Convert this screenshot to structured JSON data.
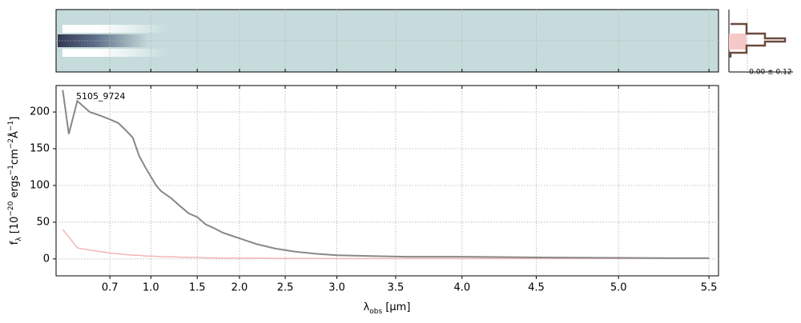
{
  "chart_data": {
    "type": "line",
    "annotation": "5105_9724",
    "profile_label": "-0.00 ± 0.12",
    "xlabel": [
      {
        "text": "λ"
      },
      {
        "text": "obs",
        "shift": "sub"
      },
      {
        "text": " [μm]"
      }
    ],
    "ylabel": [
      {
        "text": "f"
      },
      {
        "text": "λ",
        "shift": "sub"
      },
      {
        "text": " [10"
      },
      {
        "text": "−20",
        "shift": "super"
      },
      {
        "text": " ergs"
      },
      {
        "text": "−1",
        "shift": "super"
      },
      {
        "text": "cm"
      },
      {
        "text": "−2",
        "shift": "super"
      },
      {
        "text": "Å"
      },
      {
        "text": "−1",
        "shift": "super"
      },
      {
        "text": "]"
      }
    ],
    "x": [
      0.5,
      0.52,
      0.55,
      0.6,
      0.65,
      0.7,
      0.75,
      0.8,
      0.85,
      0.9,
      0.95,
      1.0,
      1.05,
      1.1,
      1.2,
      1.3,
      1.4,
      1.5,
      1.6,
      1.7,
      1.8,
      1.9,
      2.0,
      2.1,
      2.2,
      2.4,
      2.6,
      2.8,
      3.0,
      3.3,
      3.6,
      4.0,
      4.5,
      5.0,
      5.3,
      5.5
    ],
    "series": [
      {
        "color": "#888888",
        "values": [
          230,
          170,
          215,
          200,
          195,
          190,
          185,
          175,
          165,
          140,
          125,
          112,
          100,
          92,
          83,
          72,
          62,
          57,
          47,
          42,
          36,
          32,
          28,
          24,
          20,
          14,
          10,
          7,
          5,
          4,
          3,
          3,
          2,
          1.5,
          1,
          1
        ]
      },
      {
        "color": "#f4b6b6",
        "values": [
          40,
          30,
          15,
          12,
          10,
          8,
          7,
          6,
          5,
          5,
          4,
          4,
          3.5,
          3,
          3,
          2.5,
          2,
          2,
          1.5,
          1.5,
          1,
          1,
          1,
          1,
          1,
          0.8,
          0.7,
          0.6,
          0.5,
          0.5,
          0.5,
          0.5,
          0.5,
          0.7,
          0.9,
          1
        ]
      }
    ],
    "xscale": "prism",
    "xlim": [
      0.48,
      5.55
    ],
    "xticks": [
      0.7,
      {
        "value": 1,
        "label": "1.0"
      },
      1.5,
      {
        "value": 2,
        "label": "2.0"
      },
      2.5,
      {
        "value": 3,
        "label": "3.0"
      },
      3.5,
      {
        "value": 4,
        "label": "4.0"
      },
      4.5,
      {
        "value": 5,
        "label": "5.0"
      },
      5.5
    ],
    "ylim": [
      -23,
      236
    ],
    "yticks": [
      0,
      50,
      100,
      150,
      200
    ],
    "grid": true
  }
}
